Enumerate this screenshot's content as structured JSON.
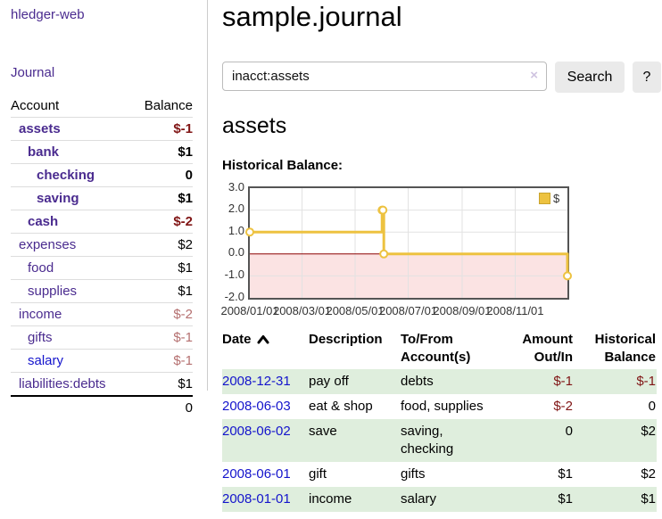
{
  "colors": {
    "purple_link": "#4a2b8f",
    "blue_link": "#1414cc",
    "neg_strong": "#801515",
    "neg_soft": "#b57070",
    "row_green": "#dfeedd",
    "chart_gold": "#edc240",
    "legend_border": "#c9a42e",
    "zero_line": "#8b0000",
    "neg_region": "#fbe3e3",
    "grid": "#e2e2e2",
    "plot_border": "#545454"
  },
  "app": {
    "brand": "hledger-web",
    "nav_journal": "Journal"
  },
  "sidebar": {
    "headers": {
      "account": "Account",
      "balance": "Balance"
    },
    "accounts": [
      {
        "name": "assets",
        "balance": "$-1"
      },
      {
        "name": "bank",
        "balance": "$1"
      },
      {
        "name": "checking",
        "balance": "0"
      },
      {
        "name": "saving",
        "balance": "$1"
      },
      {
        "name": "cash",
        "balance": "$-2"
      },
      {
        "name": "expenses",
        "balance": "$2"
      },
      {
        "name": "food",
        "balance": "$1"
      },
      {
        "name": "supplies",
        "balance": "$1"
      },
      {
        "name": "income",
        "balance": "$-2"
      },
      {
        "name": "gifts",
        "balance": "$-1"
      },
      {
        "name": "salary",
        "balance": "$-1"
      },
      {
        "name": "liabilities:debts",
        "balance": "$1"
      }
    ],
    "total": "0"
  },
  "main": {
    "title": "sample.journal",
    "search": {
      "value": "inacct:assets",
      "clear": "×",
      "button_label": "Search",
      "help_label": "?"
    },
    "account_title": "assets",
    "chart_title": "Historical Balance:"
  },
  "chart_data": {
    "type": "line",
    "step": true,
    "title": "Historical Balance:",
    "series": [
      {
        "name": "$",
        "x_dates": [
          "2008-01-01",
          "2008-06-01",
          "2008-06-02",
          "2008-06-03",
          "2008-12-31"
        ],
        "x_days": [
          0,
          152,
          153,
          154,
          365
        ],
        "values": [
          1,
          2,
          2,
          0,
          -1
        ]
      }
    ],
    "x_range_days": [
      0,
      365
    ],
    "x_ticks": [
      {
        "day": 0,
        "label": "2008/01/01"
      },
      {
        "day": 60,
        "label": "2008/03/01"
      },
      {
        "day": 121,
        "label": "2008/05/01"
      },
      {
        "day": 182,
        "label": "2008/07/01"
      },
      {
        "day": 244,
        "label": "2008/09/01"
      },
      {
        "day": 305,
        "label": "2008/11/01"
      }
    ],
    "y_ticks": [
      "3.0",
      "2.0",
      "1.0",
      "0.0",
      "-1.0",
      "-2.0"
    ],
    "ylim": [
      -2,
      3
    ],
    "legend": {
      "label": "$",
      "position": "top-right"
    },
    "negative_region_shaded": true,
    "grid": true
  },
  "register": {
    "headers": {
      "date": "Date",
      "description": "Description",
      "accounts": "To/From Account(s)",
      "amount": "Amount Out/In",
      "balance": "Historical Balance"
    },
    "rows": [
      {
        "date": "2008-12-31",
        "description": "pay off",
        "accounts": "debts",
        "amount": "$-1",
        "balance": "$-1"
      },
      {
        "date": "2008-06-03",
        "description": "eat & shop",
        "accounts": "food, supplies",
        "amount": "$-2",
        "balance": "0"
      },
      {
        "date": "2008-06-02",
        "description": "save",
        "accounts": "saving, checking",
        "amount": "0",
        "balance": "$2"
      },
      {
        "date": "2008-06-01",
        "description": "gift",
        "accounts": "gifts",
        "amount": "$1",
        "balance": "$2"
      },
      {
        "date": "2008-01-01",
        "description": "income",
        "accounts": "salary",
        "amount": "$1",
        "balance": "$1"
      }
    ]
  }
}
